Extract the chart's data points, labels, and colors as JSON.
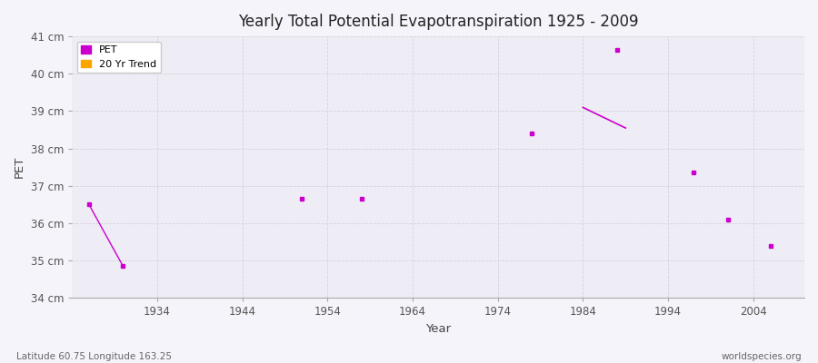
{
  "title": "Yearly Total Potential Evapotranspiration 1925 - 2009",
  "xlabel": "Year",
  "ylabel": "PET",
  "subtitle_left": "Latitude 60.75 Longitude 163.25",
  "subtitle_right": "worldspecies.org",
  "ylim": [
    34,
    41
  ],
  "xlim": [
    1924,
    2010
  ],
  "yticks": [
    34,
    35,
    36,
    37,
    38,
    39,
    40,
    41
  ],
  "ytick_labels": [
    "34 cm",
    "35 cm",
    "36 cm",
    "37 cm",
    "38 cm",
    "39 cm",
    "40 cm",
    "41 cm"
  ],
  "xticks": [
    1934,
    1944,
    1954,
    1964,
    1974,
    1984,
    1994,
    2004
  ],
  "pet_color": "#CC00CC",
  "trend_color": "#FFA500",
  "bg_color": "#eeecf4",
  "grid_color": "#d5d2de",
  "pet_years": [
    1951,
    1958,
    1978,
    1988,
    1997,
    2001,
    2006
  ],
  "pet_values": [
    36.65,
    36.65,
    38.4,
    40.65,
    37.35,
    36.1,
    35.4
  ],
  "early_line_years": [
    1926,
    1930
  ],
  "early_line_values": [
    36.5,
    34.85
  ],
  "trend_years": [
    1984,
    1989
  ],
  "trend_values": [
    39.1,
    38.55
  ],
  "legend_labels": [
    "PET",
    "20 Yr Trend"
  ],
  "marker_size": 2.5,
  "line_width": 1.0
}
